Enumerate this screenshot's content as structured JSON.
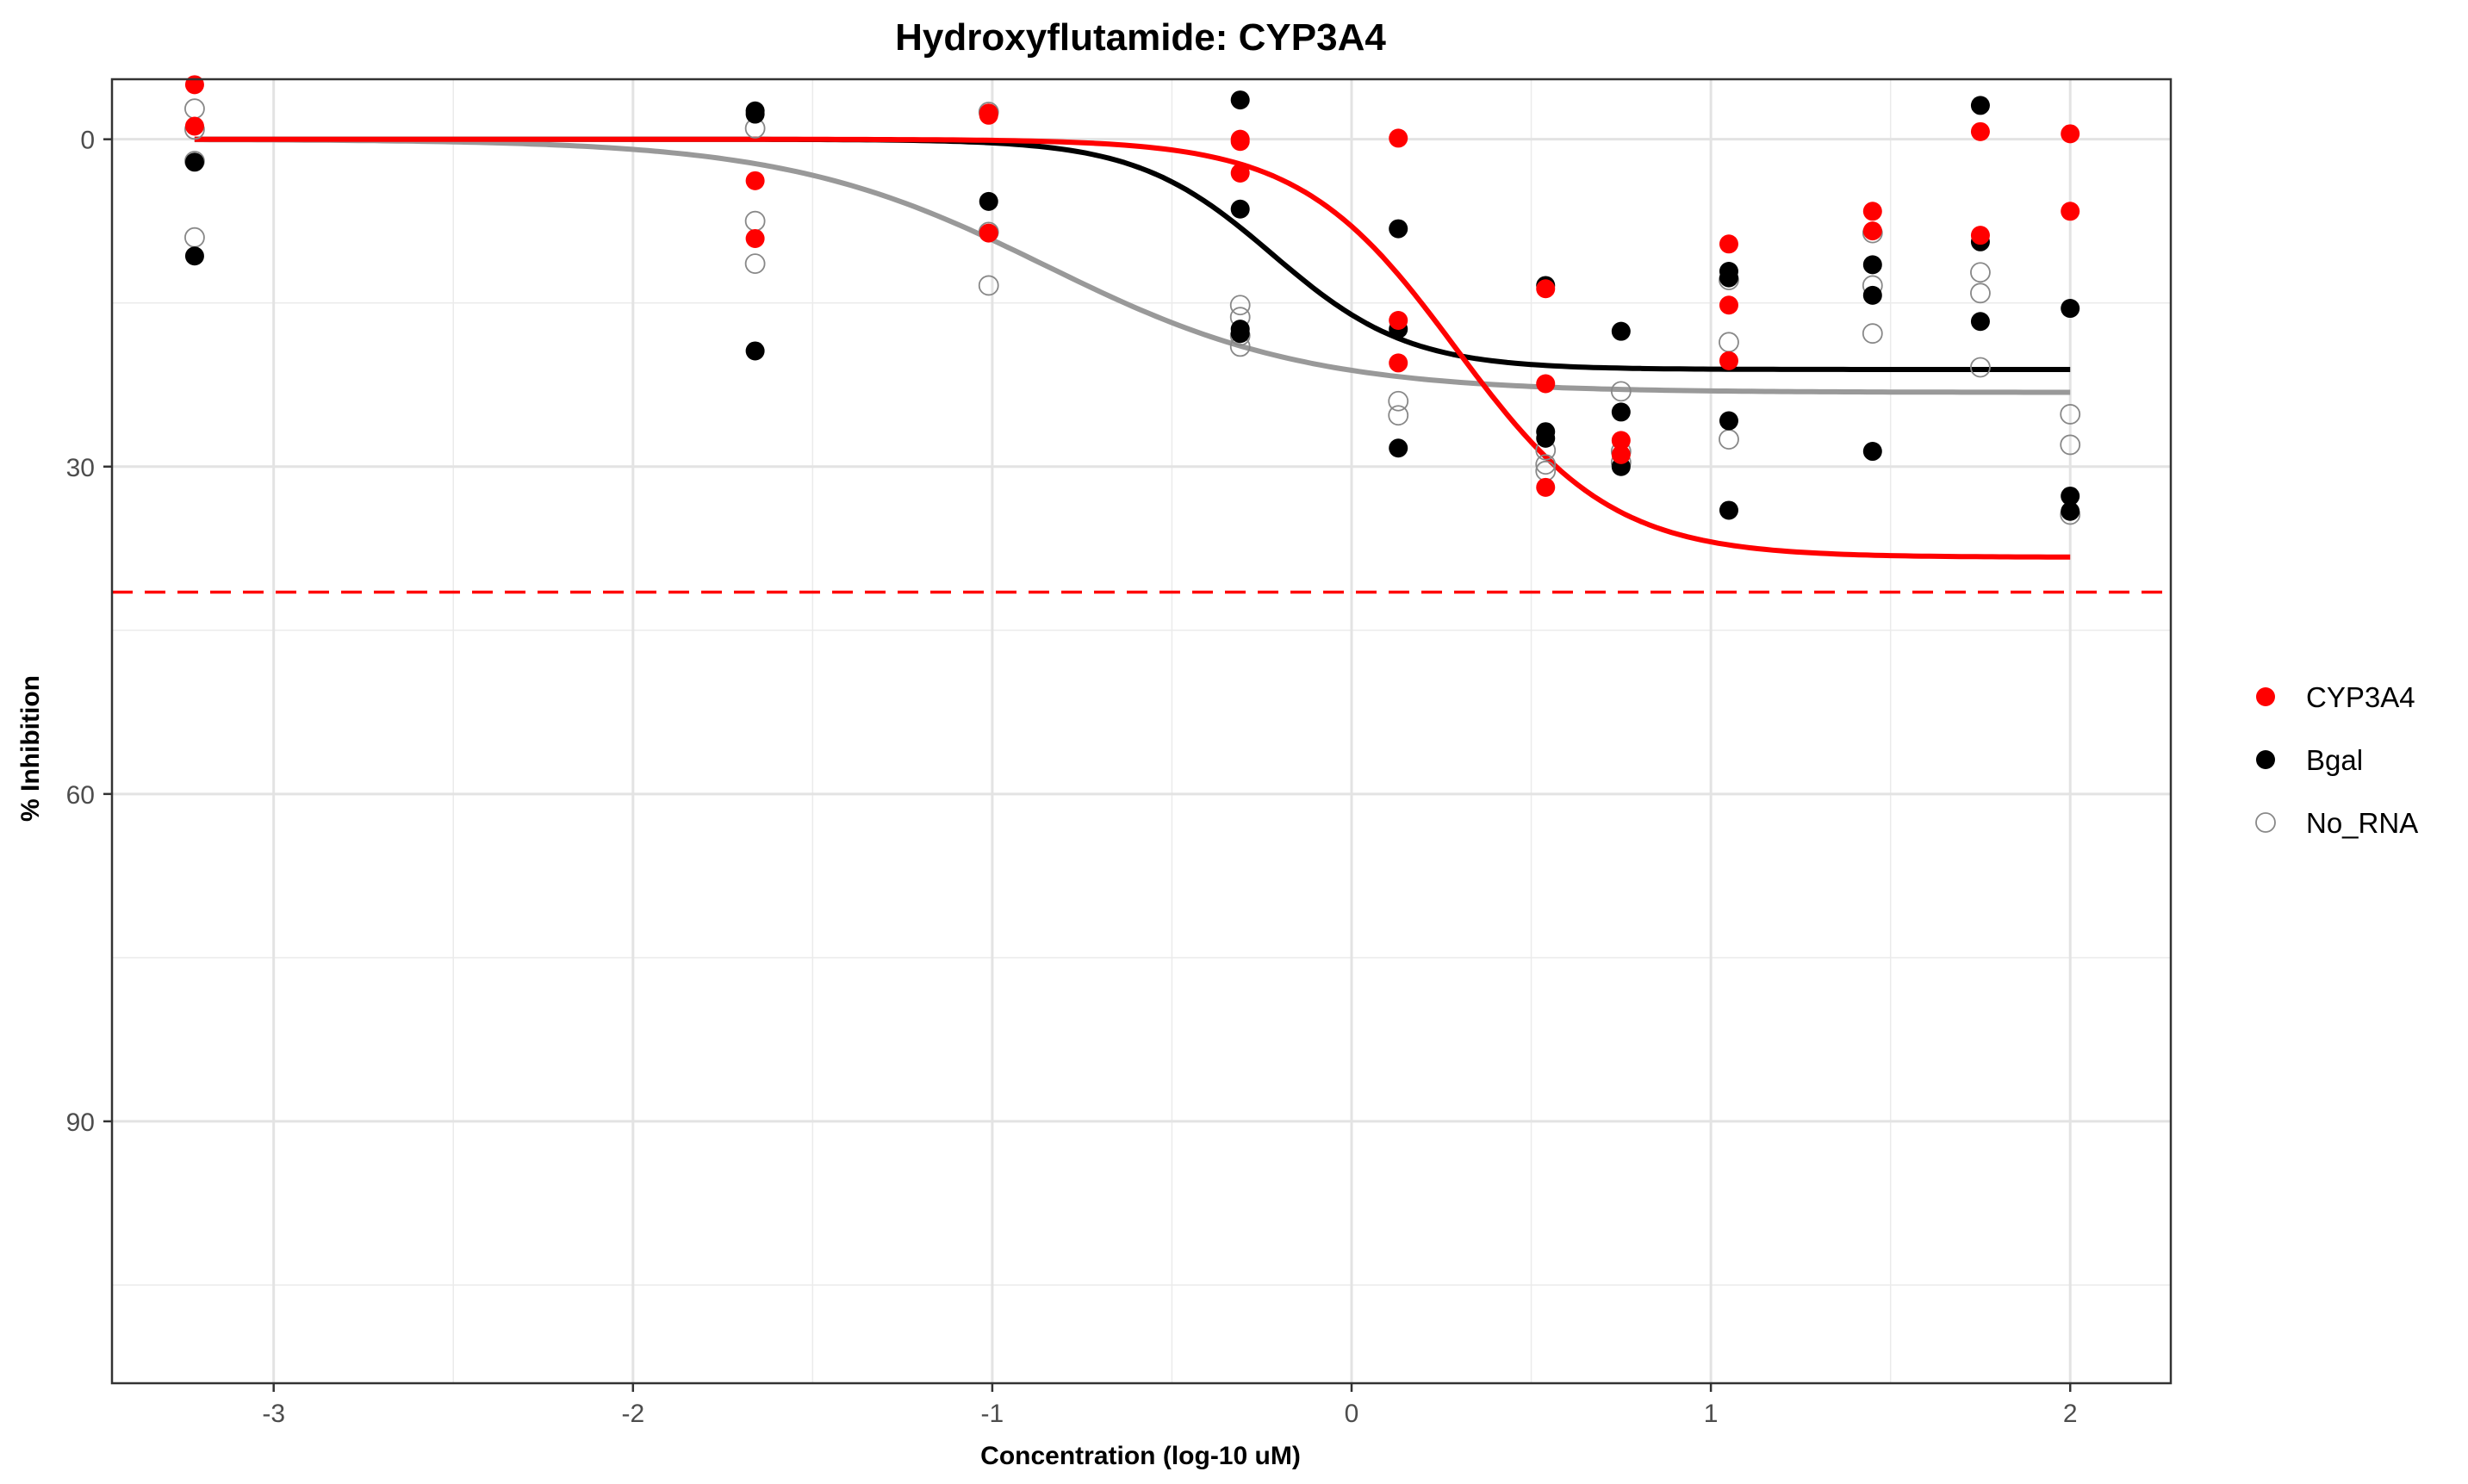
{
  "chart_data": {
    "type": "scatter",
    "title": "Hydroxyflutamide: CYP3A4",
    "xlabel": "Concentration (log-10 uM)",
    "ylabel": "% Inhibition",
    "xlim": [
      -3.45,
      2.28
    ],
    "ylim": [
      -5.5,
      114
    ],
    "y_reversed": true,
    "x_ticks": [
      -3,
      -2,
      -1,
      0,
      1,
      2
    ],
    "x_tick_labels": [
      "-3",
      "-2",
      "-1",
      "0",
      "1",
      "2"
    ],
    "y_ticks": [
      0,
      30,
      60,
      90
    ],
    "y_tick_labels": [
      "0",
      "30",
      "60",
      "90"
    ],
    "grid": true,
    "legend_position": "right",
    "threshold_line": {
      "y": 41.5,
      "color": "#ff0000",
      "style": "dashed"
    },
    "series": [
      {
        "name": "CYP3A4",
        "color": "#ff0000",
        "marker": "filled-circle",
        "points": [
          [
            -3.22,
            -5.0
          ],
          [
            -3.22,
            -1.2
          ],
          [
            -1.66,
            3.8
          ],
          [
            -1.66,
            9.1
          ],
          [
            -1.01,
            -2.4
          ],
          [
            -1.01,
            -2.2
          ],
          [
            -1.01,
            8.6
          ],
          [
            -0.31,
            0.0
          ],
          [
            -0.31,
            0.2
          ],
          [
            -0.31,
            3.1
          ],
          [
            0.13,
            -0.1
          ],
          [
            0.13,
            16.6
          ],
          [
            0.13,
            20.5
          ],
          [
            0.54,
            13.7
          ],
          [
            0.54,
            22.4
          ],
          [
            0.54,
            31.9
          ],
          [
            0.75,
            27.6
          ],
          [
            0.75,
            28.9
          ],
          [
            1.05,
            9.6
          ],
          [
            1.05,
            15.2
          ],
          [
            1.05,
            20.3
          ],
          [
            1.45,
            6.6
          ],
          [
            1.45,
            8.4
          ],
          [
            1.75,
            -0.7
          ],
          [
            1.75,
            8.8
          ],
          [
            2.0,
            -0.5
          ],
          [
            2.0,
            6.6
          ]
        ],
        "fit": {
          "bottom": 0,
          "top": 38.3,
          "log_ic50": 0.29,
          "hill": 2.0
        }
      },
      {
        "name": "Bgal",
        "color": "#000000",
        "marker": "filled-circle",
        "points": [
          [
            -3.22,
            2.1
          ],
          [
            -3.22,
            10.7
          ],
          [
            -1.66,
            -2.6
          ],
          [
            -1.66,
            -2.3
          ],
          [
            -1.66,
            19.4
          ],
          [
            -1.01,
            5.7
          ],
          [
            -0.31,
            -3.6
          ],
          [
            -0.31,
            6.4
          ],
          [
            -0.31,
            17.4
          ],
          [
            -0.31,
            17.8
          ],
          [
            0.13,
            8.2
          ],
          [
            0.13,
            17.4
          ],
          [
            0.13,
            28.3
          ],
          [
            0.54,
            13.4
          ],
          [
            0.54,
            26.8
          ],
          [
            0.54,
            27.4
          ],
          [
            0.75,
            17.6
          ],
          [
            0.75,
            25.0
          ],
          [
            0.75,
            30.0
          ],
          [
            1.05,
            12.1
          ],
          [
            1.05,
            12.7
          ],
          [
            1.05,
            25.8
          ],
          [
            1.05,
            34.0
          ],
          [
            1.45,
            11.5
          ],
          [
            1.45,
            14.3
          ],
          [
            1.45,
            28.6
          ],
          [
            1.75,
            -3.1
          ],
          [
            1.75,
            9.4
          ],
          [
            1.75,
            16.7
          ],
          [
            2.0,
            15.5
          ],
          [
            2.0,
            32.7
          ],
          [
            2.0,
            34.1
          ]
        ],
        "fit": {
          "bottom": 0,
          "top": 21.1,
          "log_ic50": -0.22,
          "hill": 2.3
        }
      },
      {
        "name": "No_RNA",
        "color": "#888888",
        "marker": "open-circle",
        "points": [
          [
            -3.22,
            -2.8
          ],
          [
            -3.22,
            -0.9
          ],
          [
            -3.22,
            2.0
          ],
          [
            -3.22,
            9.0
          ],
          [
            -1.66,
            -1.0
          ],
          [
            -1.66,
            7.5
          ],
          [
            -1.66,
            11.4
          ],
          [
            -1.01,
            -2.5
          ],
          [
            -1.01,
            8.5
          ],
          [
            -1.01,
            13.4
          ],
          [
            -0.31,
            15.2
          ],
          [
            -0.31,
            16.3
          ],
          [
            -0.31,
            18.0
          ],
          [
            -0.31,
            19.0
          ],
          [
            0.13,
            24.0
          ],
          [
            0.13,
            25.3
          ],
          [
            0.54,
            28.5
          ],
          [
            0.54,
            29.8
          ],
          [
            0.54,
            30.4
          ],
          [
            0.75,
            23.1
          ],
          [
            0.75,
            28.6
          ],
          [
            0.75,
            29.6
          ],
          [
            1.05,
            12.9
          ],
          [
            1.05,
            18.6
          ],
          [
            1.05,
            27.5
          ],
          [
            1.45,
            8.6
          ],
          [
            1.45,
            13.4
          ],
          [
            1.45,
            17.8
          ],
          [
            1.75,
            12.2
          ],
          [
            1.75,
            14.1
          ],
          [
            1.75,
            20.9
          ],
          [
            2.0,
            25.2
          ],
          [
            2.0,
            28.0
          ],
          [
            2.0,
            34.4
          ]
        ],
        "fit": {
          "bottom": 0,
          "top": 23.2,
          "log_ic50": -0.85,
          "hill": 1.2
        }
      }
    ]
  }
}
